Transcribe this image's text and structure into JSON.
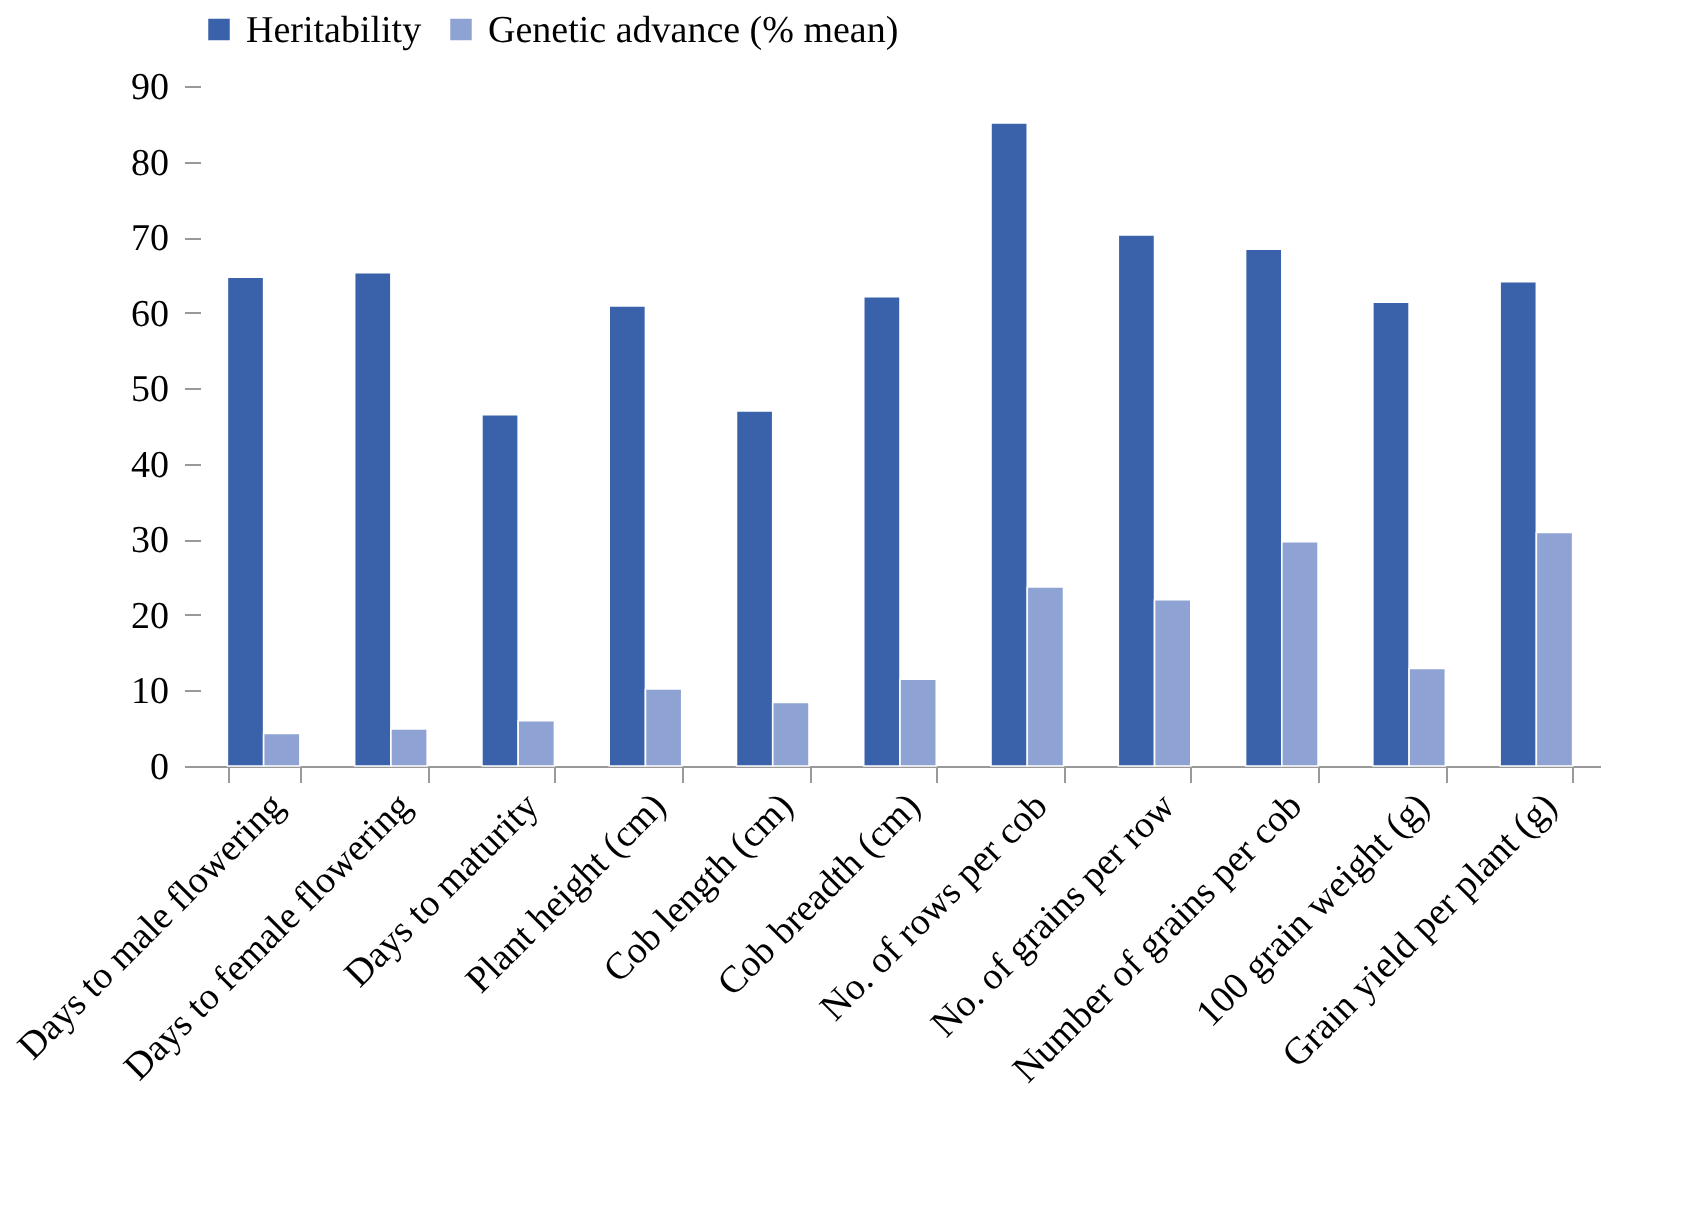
{
  "chart_data": {
    "type": "bar",
    "categories": [
      "Days to male flowering",
      "Days to female flowering",
      "Days to maturity",
      "Plant height (cm)",
      "Cob length (cm)",
      "Cob breadth (cm)",
      "No. of rows per cob",
      "No. of grains per row",
      "Number of grains per cob",
      "100 grain weight (g)",
      "Grain yield per plant (g)"
    ],
    "series": [
      {
        "name": "Heritability",
        "color": "#3a62aa",
        "values": [
          64.7,
          65.3,
          46.5,
          60.9,
          47.0,
          62.1,
          85.1,
          70.3,
          68.4,
          61.4,
          64.1
        ]
      },
      {
        "name": "Genetic advance (% mean)",
        "color": "#8ea2d3",
        "values": [
          4.3,
          4.9,
          6.0,
          10.2,
          8.4,
          11.5,
          23.7,
          22.0,
          29.7,
          12.9,
          30.9
        ]
      }
    ],
    "ylim": [
      0,
      90
    ],
    "yticks": [
      0,
      10,
      20,
      30,
      40,
      50,
      60,
      70,
      80,
      90
    ],
    "grid": false,
    "legend": "top"
  }
}
